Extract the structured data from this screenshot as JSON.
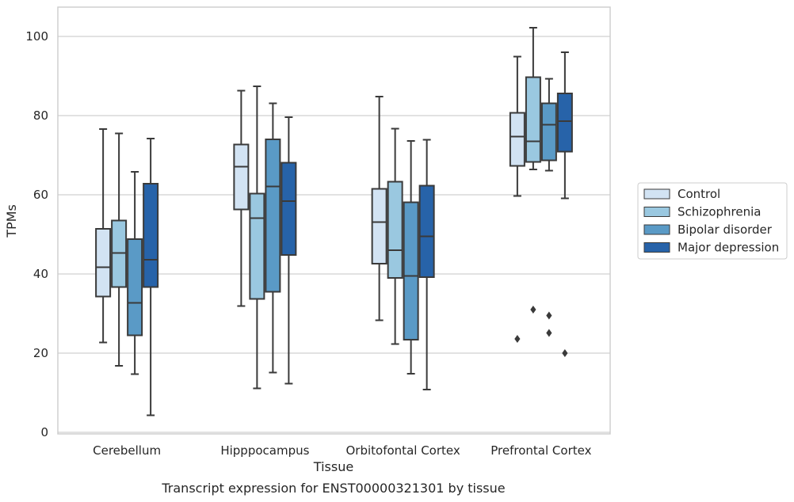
{
  "chart_data": {
    "type": "box",
    "caption": "Transcript expression for ENST00000321301 by tissue",
    "xlabel": "Tissue",
    "ylabel": "TPMs",
    "ylim": [
      0,
      107
    ],
    "yticks": [
      0,
      20,
      40,
      60,
      80,
      100
    ],
    "grid": "horizontal",
    "legend_position": "right",
    "categories": [
      "Cerebellum",
      "Hipppocampus",
      "Orbitofontal Cortex",
      "Prefrontal Cortex"
    ],
    "series": [
      {
        "name": "Control",
        "color": "#d2e3f3",
        "boxes": [
          {
            "whisker_low": 22.7,
            "q1": 34.3,
            "median": 41.7,
            "q3": 51.4,
            "whisker_high": 76.6,
            "outliers": []
          },
          {
            "whisker_low": 31.9,
            "q1": 56.3,
            "median": 67.1,
            "q3": 72.7,
            "whisker_high": 86.3,
            "outliers": []
          },
          {
            "whisker_low": 28.3,
            "q1": 42.6,
            "median": 53.1,
            "q3": 61.5,
            "whisker_high": 84.8,
            "outliers": []
          },
          {
            "whisker_low": 59.7,
            "q1": 67.3,
            "median": 74.7,
            "q3": 80.7,
            "whisker_high": 94.9,
            "outliers": [
              23.6
            ]
          }
        ]
      },
      {
        "name": "Schizophrenia",
        "color": "#9ac8e0",
        "boxes": [
          {
            "whisker_low": 16.8,
            "q1": 36.7,
            "median": 45.3,
            "q3": 53.5,
            "whisker_high": 75.5,
            "outliers": []
          },
          {
            "whisker_low": 11.1,
            "q1": 33.7,
            "median": 54.1,
            "q3": 60.3,
            "whisker_high": 87.4,
            "outliers": []
          },
          {
            "whisker_low": 22.3,
            "q1": 39.0,
            "median": 46.0,
            "q3": 63.3,
            "whisker_high": 76.7,
            "outliers": []
          },
          {
            "whisker_low": 66.4,
            "q1": 68.3,
            "median": 73.5,
            "q3": 89.7,
            "whisker_high": 102.2,
            "outliers": [
              31.0
            ]
          }
        ]
      },
      {
        "name": "Bipolar disorder",
        "color": "#5a9ac6",
        "boxes": [
          {
            "whisker_low": 14.7,
            "q1": 24.5,
            "median": 32.7,
            "q3": 48.8,
            "whisker_high": 65.8,
            "outliers": []
          },
          {
            "whisker_low": 15.1,
            "q1": 35.5,
            "median": 62.1,
            "q3": 74.0,
            "whisker_high": 83.1,
            "outliers": []
          },
          {
            "whisker_low": 14.8,
            "q1": 23.4,
            "median": 39.5,
            "q3": 58.1,
            "whisker_high": 73.6,
            "outliers": []
          },
          {
            "whisker_low": 66.1,
            "q1": 68.7,
            "median": 77.7,
            "q3": 83.1,
            "whisker_high": 89.3,
            "outliers": [
              29.5,
              25.1
            ]
          }
        ]
      },
      {
        "name": "Major depression",
        "color": "#2763a9",
        "boxes": [
          {
            "whisker_low": 4.3,
            "q1": 36.7,
            "median": 43.6,
            "q3": 62.8,
            "whisker_high": 74.2,
            "outliers": []
          },
          {
            "whisker_low": 12.3,
            "q1": 44.8,
            "median": 58.4,
            "q3": 68.1,
            "whisker_high": 79.6,
            "outliers": []
          },
          {
            "whisker_low": 10.8,
            "q1": 39.2,
            "median": 49.5,
            "q3": 62.3,
            "whisker_high": 73.9,
            "outliers": []
          },
          {
            "whisker_low": 59.1,
            "q1": 70.9,
            "median": 78.6,
            "q3": 85.6,
            "whisker_high": 96.0,
            "outliers": [
              20.0
            ]
          }
        ]
      }
    ]
  }
}
